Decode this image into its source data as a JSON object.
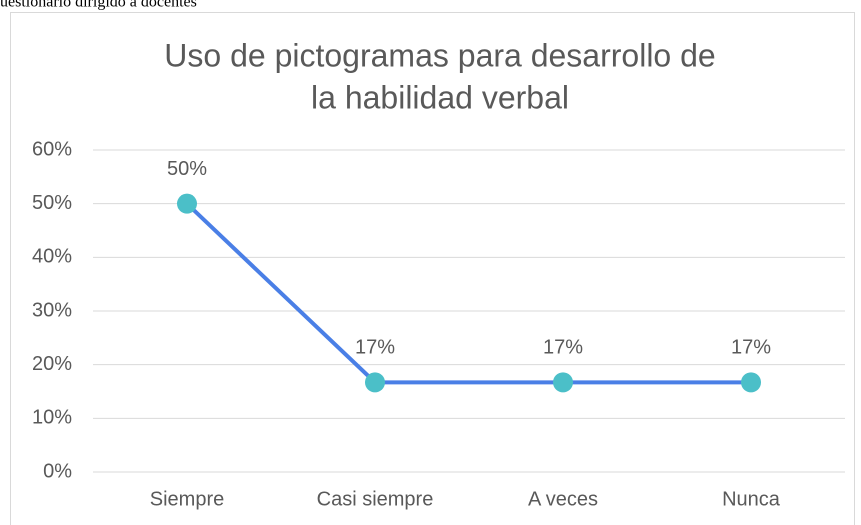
{
  "caption": "uestionario dirigido a docentes",
  "chart_data": {
    "type": "line",
    "title": [
      "Uso de pictogramas para desarrollo de",
      "la habilidad verbal"
    ],
    "categories": [
      "Siempre",
      "Casi siempre",
      "A veces",
      "Nunca"
    ],
    "values": [
      50,
      16.7,
      16.7,
      16.7
    ],
    "value_labels": [
      "50%",
      "17%",
      "17%",
      "17%"
    ],
    "color": "#4a7fe6",
    "marker_color": "#4bbfc8",
    "ylim": [
      0,
      60
    ],
    "yticks": [
      {
        "value": 0,
        "label": "0%"
      },
      {
        "value": 10,
        "label": "10%"
      },
      {
        "value": 20,
        "label": "20%"
      },
      {
        "value": 30,
        "label": "30%"
      },
      {
        "value": 40,
        "label": "40%"
      },
      {
        "value": 50,
        "label": "50%"
      },
      {
        "value": 60,
        "label": "60%"
      }
    ],
    "grid": true
  }
}
